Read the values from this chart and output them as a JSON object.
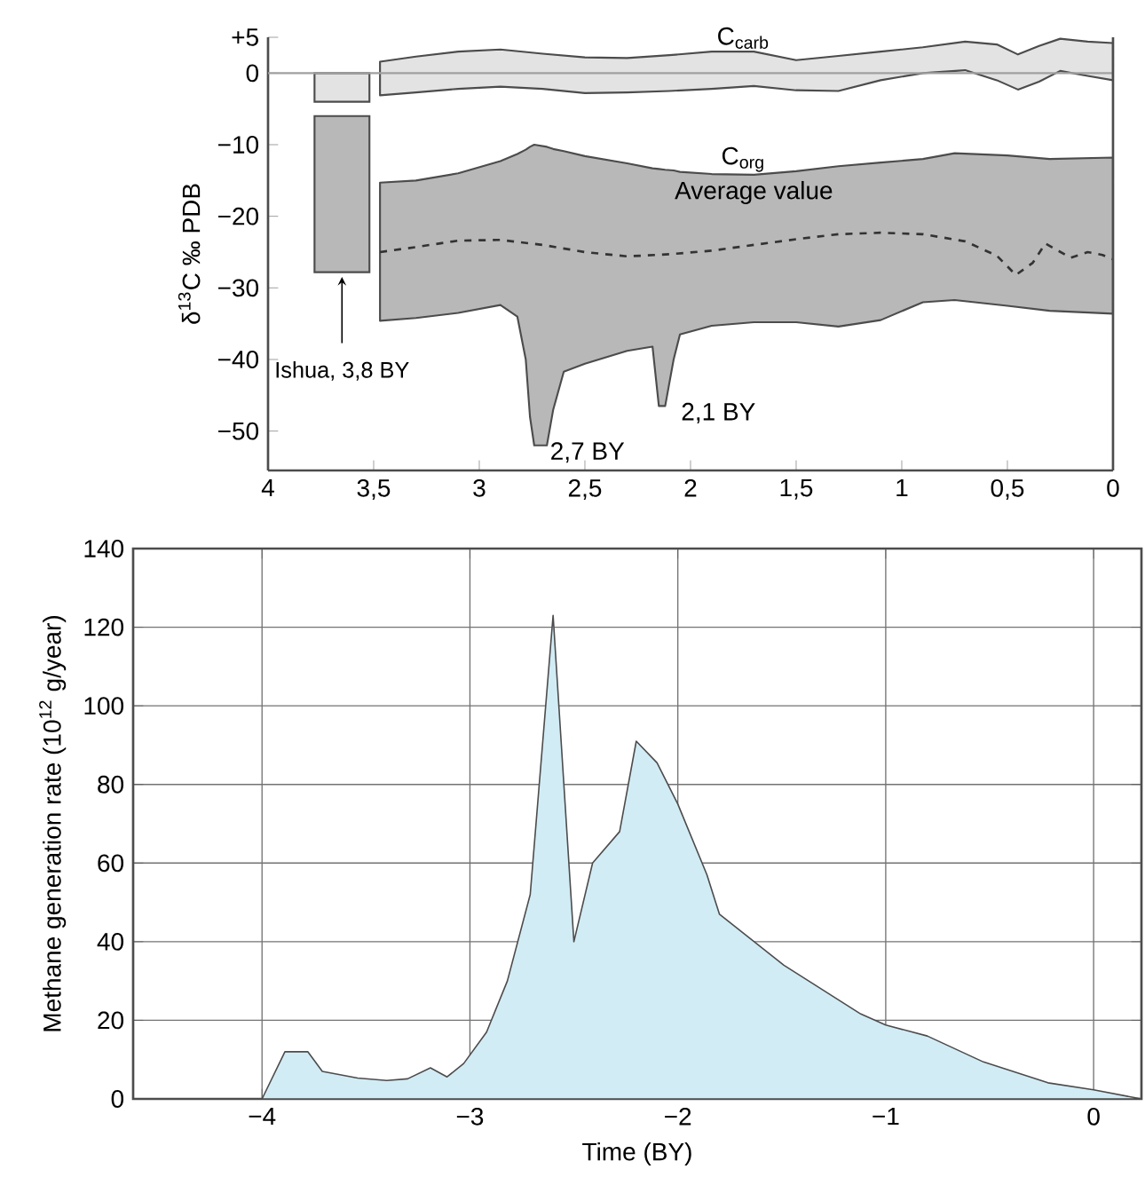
{
  "chart_data": [
    {
      "type": "line",
      "ylabel": "δ$^{13}$C ‰ PDB",
      "xlim": [
        4,
        0
      ],
      "ylim": [
        -55.5,
        5
      ],
      "xticks": [
        4,
        {
          "value": 3.5,
          "label": "3,5"
        },
        3,
        {
          "value": 2.5,
          "label": "2,5"
        },
        2,
        {
          "value": 1.5,
          "label": "1,5"
        },
        1,
        {
          "value": 0.5,
          "label": "0,5"
        },
        0
      ],
      "yticks": [
        {
          "value": 5,
          "label": "+5"
        },
        0,
        {
          "value": -10,
          "label": "−10"
        },
        {
          "value": -20,
          "label": "−20"
        },
        {
          "value": -30,
          "label": "−30"
        },
        {
          "value": -40,
          "label": "−40"
        },
        {
          "value": -50,
          "label": "−50"
        }
      ],
      "ref_lines": [
        {
          "axis": "y",
          "value": 0,
          "color": "#a0a0a0"
        }
      ],
      "series": [
        {
          "type": "line",
          "color": "#e3e3e3",
          "x": [
            3.47,
            3.3,
            3.1,
            2.9,
            2.7,
            2.5,
            2.3,
            2.1,
            1.9,
            1.7,
            1.5,
            1.3,
            1.1,
            0.9,
            0.7,
            0.55,
            0.45,
            0.35,
            0.25,
            0.12,
            0
          ],
          "values": [
            null,
            null,
            null,
            null,
            null,
            null,
            null,
            null,
            null,
            null,
            null,
            null,
            null,
            null,
            null,
            null,
            null,
            null,
            null,
            null,
            null
          ],
          "upper": [
            1.6,
            2.3,
            3.0,
            3.3,
            2.7,
            2.2,
            2.1,
            2.5,
            3.0,
            3.0,
            1.8,
            2.4,
            3.0,
            3.6,
            4.4,
            4.0,
            2.6,
            3.8,
            4.8,
            4.4,
            4.2
          ],
          "lower": [
            -3.1,
            -2.7,
            -2.2,
            -1.9,
            -2.2,
            -2.8,
            -2.7,
            -2.5,
            -2.2,
            -1.8,
            -2.4,
            -2.5,
            -1.0,
            0,
            0.4,
            -1.0,
            -2.3,
            -1.2,
            0.3,
            -0.4,
            -1.0
          ]
        },
        {
          "type": "line",
          "color": "#b8b8b8",
          "x": [
            3.47,
            3.3,
            3.1,
            2.9,
            2.82,
            2.78,
            2.76,
            2.74,
            2.68,
            2.65,
            2.6,
            2.5,
            2.3,
            2.18,
            2.15,
            2.12,
            2.08,
            2.05,
            1.9,
            1.7,
            1.5,
            1.3,
            1.1,
            0.9,
            0.75,
            0.5,
            0.3,
            0
          ],
          "values": [
            null,
            null,
            null,
            null,
            null,
            null,
            null,
            null,
            null,
            null,
            null,
            null,
            null,
            null,
            null,
            null,
            null,
            null,
            null,
            null,
            null,
            null,
            null,
            null,
            null,
            null,
            null,
            null
          ],
          "upper": [
            -15.3,
            -15,
            -14,
            -12.3,
            -11.3,
            -10.7,
            -10.3,
            -10,
            -10.3,
            -10.6,
            -10.9,
            -11.6,
            -12.6,
            -13.3,
            -13.4,
            -13.5,
            -13.6,
            -13.8,
            -14.1,
            -14.2,
            -13.7,
            -13,
            -12.5,
            -12,
            -11.2,
            -11.5,
            -12,
            -11.8
          ],
          "lower": [
            -34.6,
            -34.2,
            -33.5,
            -32.4,
            -34,
            -40,
            -48,
            -52,
            -52,
            -47,
            -41.7,
            -40.6,
            -38.8,
            -38.2,
            -46.5,
            -46.5,
            -40,
            -36.5,
            -35.3,
            -34.8,
            -34.8,
            -35.4,
            -34.5,
            -32,
            -31.7,
            -32.5,
            -33.2,
            -33.6
          ]
        },
        {
          "name": "Average value",
          "type": "line",
          "line_style": "dashed",
          "color": "#333333",
          "x": [
            3.47,
            3.3,
            3.1,
            2.9,
            2.7,
            2.5,
            2.3,
            2.1,
            1.9,
            1.7,
            1.5,
            1.3,
            1.1,
            0.9,
            0.7,
            0.55,
            0.46,
            0.38,
            0.32,
            0.26,
            0.2,
            0.12,
            0.05,
            0
          ],
          "values": [
            -25,
            -24.3,
            -23.4,
            -23.3,
            -24,
            -25,
            -25.6,
            -25.3,
            -24.8,
            -24,
            -23.2,
            -22.5,
            -22.3,
            -22.5,
            -23.5,
            -25.5,
            -28.2,
            -26.5,
            -23.8,
            -24.8,
            -25.8,
            -25,
            -25.4,
            -26
          ]
        },
        {
          "type": "bar",
          "color": "#e3e3e3",
          "x": [
            3.65
          ],
          "base": [
            -4
          ],
          "values": [
            4
          ]
        },
        {
          "type": "bar",
          "color": "#b8b8b8",
          "x": [
            3.65
          ],
          "base": [
            -27.8
          ],
          "values": [
            21.8
          ]
        }
      ],
      "annotations": [
        {
          "text": "Ishua, 3,8 BY",
          "x": 3.65,
          "y": -27.8
        },
        {
          "text": "2,7 BY",
          "x": 2.74,
          "y": -52
        },
        {
          "text": "2,1 BY",
          "x": 2.12,
          "y": -46.5
        },
        "C$_{carb}$",
        "C$_{org}$"
      ]
    },
    {
      "type": "area",
      "xlabel": "Time (BY)",
      "ylabel": "Methane generation rate (10$^{12}$ g/year)",
      "xlim": [
        -4.62,
        0.23
      ],
      "ylim": [
        0,
        140
      ],
      "xticks": [
        {
          "value": -4,
          "label": "−4"
        },
        {
          "value": -3,
          "label": "−3"
        },
        {
          "value": -2,
          "label": "−2"
        },
        {
          "value": -1,
          "label": "−1"
        },
        0
      ],
      "yticks": [
        0,
        20,
        40,
        60,
        80,
        100,
        120,
        140
      ],
      "grid": true,
      "color": "#d2ecf5",
      "x": [
        -4.0,
        -3.89,
        -3.78,
        -3.71,
        -3.54,
        -3.4,
        -3.3,
        -3.19,
        -3.11,
        -3.03,
        -2.92,
        -2.82,
        -2.71,
        -2.6,
        -2.5,
        -2.41,
        -2.28,
        -2.2,
        -2.1,
        -2.0,
        -1.86,
        -1.8,
        -1.49,
        -1.12,
        -1.0,
        -0.8,
        -0.53,
        -0.22,
        0,
        0.23
      ],
      "values": [
        0,
        12,
        12,
        7,
        5.3,
        4.7,
        5.1,
        7.9,
        5.6,
        9,
        17,
        30,
        52,
        123,
        40,
        60,
        68,
        91,
        85.5,
        75,
        57,
        47,
        34,
        21.6,
        18.8,
        16,
        9.4,
        4.1,
        2.3,
        0
      ]
    }
  ]
}
